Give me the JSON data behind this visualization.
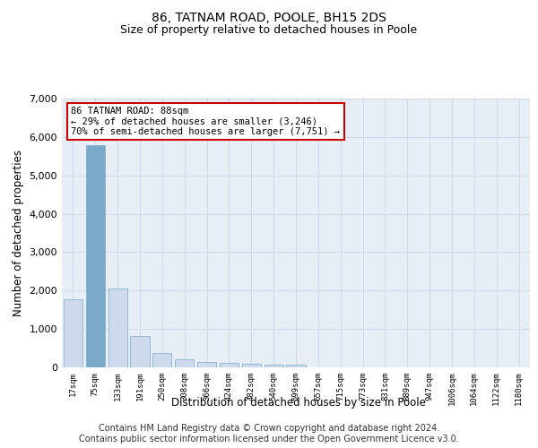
{
  "title": "86, TATNAM ROAD, POOLE, BH15 2DS",
  "subtitle": "Size of property relative to detached houses in Poole",
  "xlabel": "Distribution of detached houses by size in Poole",
  "ylabel": "Number of detached properties",
  "categories": [
    "17sqm",
    "75sqm",
    "133sqm",
    "191sqm",
    "250sqm",
    "308sqm",
    "366sqm",
    "424sqm",
    "482sqm",
    "540sqm",
    "599sqm",
    "657sqm",
    "715sqm",
    "773sqm",
    "831sqm",
    "889sqm",
    "947sqm",
    "1006sqm",
    "1064sqm",
    "1122sqm",
    "1180sqm"
  ],
  "values": [
    1780,
    5780,
    2060,
    820,
    370,
    210,
    130,
    110,
    95,
    80,
    70,
    0,
    0,
    0,
    0,
    0,
    0,
    0,
    0,
    0,
    0
  ],
  "highlight_index": 1,
  "bar_color": "#ccdaeb",
  "highlight_bar_color": "#7aaac8",
  "bar_edge_color": "#7aaac8",
  "annotation_box_text": "86 TATNAM ROAD: 88sqm\n← 29% of detached houses are smaller (3,246)\n70% of semi-detached houses are larger (7,751) →",
  "annotation_box_color": "#ffffff",
  "annotation_box_edge_color": "#cc0000",
  "ylim": [
    0,
    7000
  ],
  "yticks": [
    0,
    1000,
    2000,
    3000,
    4000,
    5000,
    6000,
    7000
  ],
  "grid_color": "#d0d8e8",
  "background_color": "#e8eef6",
  "footer_line1": "Contains HM Land Registry data © Crown copyright and database right 2024.",
  "footer_line2": "Contains public sector information licensed under the Open Government Licence v3.0.",
  "title_fontsize": 10,
  "subtitle_fontsize": 9,
  "footer_fontsize": 7,
  "annotation_fontsize": 7.5,
  "xlabel_fontsize": 8.5,
  "ylabel_fontsize": 8.5
}
